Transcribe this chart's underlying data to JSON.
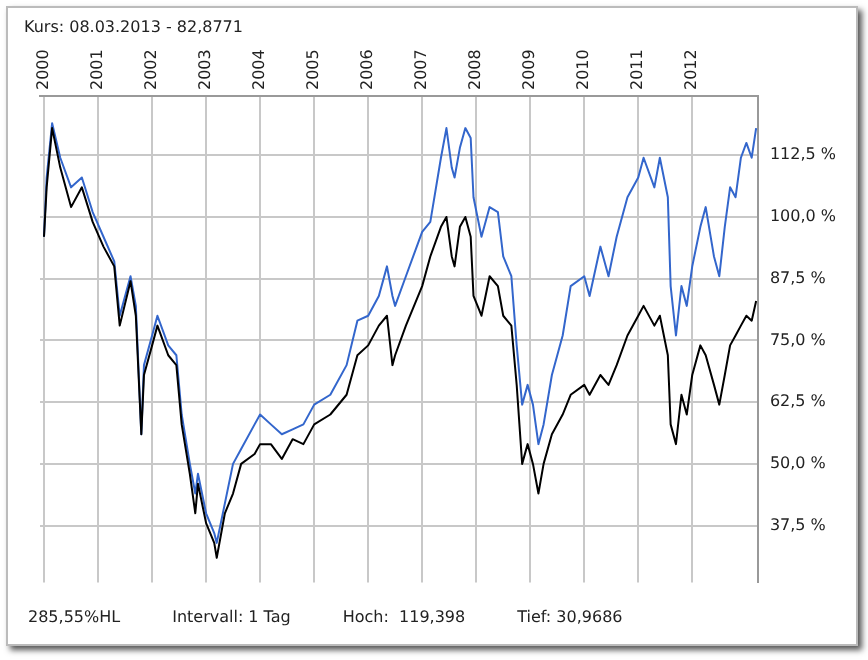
{
  "chart_data": {
    "type": "line",
    "title": "Kurs: 08.03.2013 - 82,8771",
    "annotations": [
      "285,55%HL",
      "Intervall: 1 Tag",
      "Hoch:  119,398",
      "Tief: 30,9686"
    ],
    "x": [
      "2000-01-01",
      "2000-01-19",
      "2000-02-25",
      "2000-04-20",
      "2000-07-02",
      "2000-09-13",
      "2000-11-25",
      "2001-02-06",
      "2001-04-20",
      "2001-05-27",
      "2001-08-08",
      "2001-09-13",
      "2001-10-20",
      "2001-11-07",
      "2002-01-01",
      "2002-02-06",
      "2002-04-20",
      "2002-06-14",
      "2002-07-20",
      "2002-09-13",
      "2002-10-20",
      "2002-11-07",
      "2003-01-01",
      "2003-02-25",
      "2003-03-14",
      "2003-05-08",
      "2003-07-02",
      "2003-08-26",
      "2003-11-25",
      "2004-01-01",
      "2004-03-14",
      "2004-05-27",
      "2004-08-08",
      "2004-10-20",
      "2005-01-01",
      "2005-04-20",
      "2005-08-08",
      "2005-10-20",
      "2006-01-01",
      "2006-03-14",
      "2006-05-08",
      "2006-06-14",
      "2006-07-02",
      "2006-09-13",
      "2007-01-01",
      "2007-02-25",
      "2007-05-08",
      "2007-06-14",
      "2007-07-20",
      "2007-08-08",
      "2007-09-13",
      "2007-10-20",
      "2007-11-25",
      "2007-12-14",
      "2008-02-06",
      "2008-04-01",
      "2008-05-27",
      "2008-07-02",
      "2008-08-26",
      "2008-10-01",
      "2008-11-07",
      "2008-12-14",
      "2009-01-19",
      "2009-02-25",
      "2009-04-01",
      "2009-05-27",
      "2009-08-08",
      "2009-10-01",
      "2010-01-01",
      "2010-02-06",
      "2010-04-20",
      "2010-06-14",
      "2010-08-08",
      "2010-10-20",
      "2011-01-01",
      "2011-02-06",
      "2011-04-20",
      "2011-05-27",
      "2011-07-20",
      "2011-08-08",
      "2011-09-13",
      "2011-10-20",
      "2011-11-25",
      "2012-01-01",
      "2012-02-25",
      "2012-04-01",
      "2012-05-27",
      "2012-07-02",
      "2012-08-08",
      "2012-09-13",
      "2012-10-20",
      "2012-11-25",
      "2013-01-01",
      "2013-02-06",
      "2013-03-08"
    ],
    "series": [
      {
        "color": "#3366cc",
        "values": [
          96,
          108,
          119,
          112,
          106,
          108,
          101,
          96,
          91,
          80,
          88,
          82,
          56,
          70,
          76,
          80,
          74,
          72,
          60,
          50,
          44,
          48,
          40,
          36,
          34,
          42,
          50,
          53,
          58,
          60,
          58,
          56,
          57,
          58,
          62,
          64,
          70,
          79,
          80,
          84,
          90,
          84,
          82,
          88,
          97,
          99,
          112,
          118,
          110,
          108,
          114,
          118,
          116,
          104,
          96,
          102,
          101,
          92,
          88,
          74,
          62,
          66,
          62,
          54,
          58,
          68,
          76,
          86,
          88,
          84,
          94,
          88,
          96,
          104,
          108,
          112,
          106,
          112,
          104,
          86,
          76,
          86,
          82,
          90,
          98,
          102,
          92,
          88,
          98,
          106,
          104,
          112,
          115,
          112,
          118
        ]
      },
      {
        "color": "#000000",
        "values": [
          96,
          106,
          118,
          110,
          102,
          106,
          99,
          94,
          90,
          78,
          87,
          80,
          56,
          68,
          74,
          78,
          72,
          70,
          58,
          48,
          40,
          46,
          38,
          34,
          31,
          40,
          44,
          50,
          52,
          54,
          54,
          51,
          55,
          54,
          58,
          60,
          64,
          72,
          74,
          78,
          80,
          70,
          72,
          78,
          86,
          92,
          98,
          100,
          92,
          90,
          98,
          100,
          96,
          84,
          80,
          88,
          86,
          80,
          78,
          66,
          50,
          54,
          50,
          44,
          50,
          56,
          60,
          64,
          66,
          64,
          68,
          66,
          70,
          76,
          80,
          82,
          78,
          80,
          72,
          58,
          54,
          64,
          60,
          68,
          74,
          72,
          66,
          62,
          68,
          74,
          76,
          78,
          80,
          79,
          83
        ]
      }
    ],
    "xlim": [
      "1999-12-05",
      "2013-03-20"
    ],
    "xticks": [
      "2000",
      "2001",
      "2002",
      "2003",
      "2004",
      "2005",
      "2006",
      "2007",
      "2008",
      "2009",
      "2010",
      "2011",
      "2012"
    ],
    "ylim": [
      26,
      124.5
    ],
    "yticks": [
      {
        "value": 37.5,
        "label": "37,5 %"
      },
      {
        "value": 50,
        "label": "50,0 %"
      },
      {
        "value": 62.5,
        "label": "62,5 %"
      },
      {
        "value": 75,
        "label": "75,0 %"
      },
      {
        "value": 87.5,
        "label": "87,5 %"
      },
      {
        "value": 100,
        "label": "100,0 %"
      },
      {
        "value": 112.5,
        "label": "112,5 %"
      }
    ],
    "grid": true
  }
}
